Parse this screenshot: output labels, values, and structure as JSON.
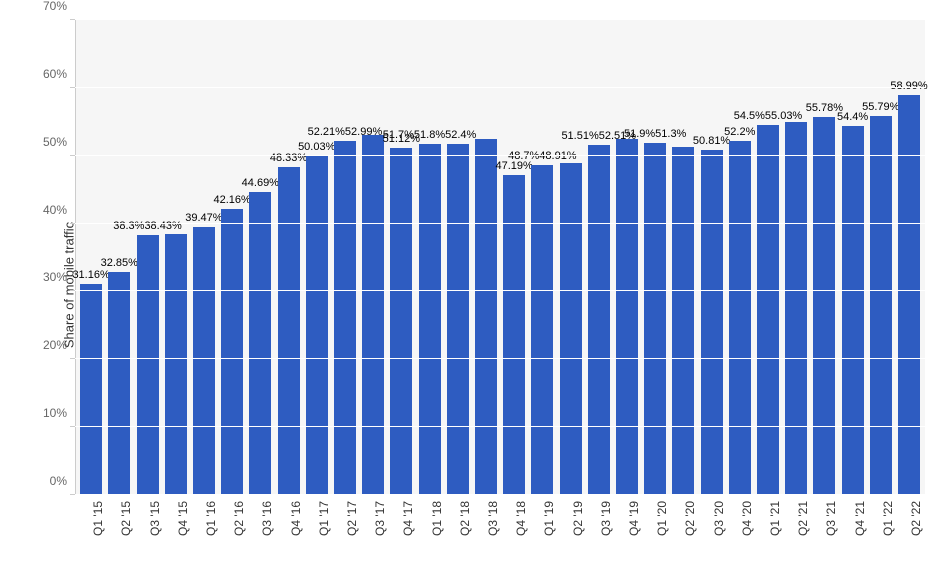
{
  "chart": {
    "type": "bar",
    "y_axis_label": "Share of mobile traffic",
    "ylim_min": 0,
    "ylim_max": 70,
    "ytick_step": 10,
    "y_tick_suffix": "%",
    "background_color": "#f6f6f6",
    "grid_color": "#ffffff",
    "axis_color": "#cccccc",
    "bar_color": "#2e5cc1",
    "bar_width_ratio": 0.78,
    "label_fontsize": 11,
    "axis_label_fontsize": 13,
    "tick_fontsize": 12,
    "categories": [
      "Q1 '15",
      "Q2 '15",
      "Q3 '15",
      "Q4 '15",
      "Q1 '16",
      "Q2 '16",
      "Q3 '16",
      "Q4 '16",
      "Q1 '17",
      "Q2 '17",
      "Q3 '17",
      "Q4 '17",
      "Q1 '18",
      "Q2 '18",
      "Q3 '18",
      "Q4 '18",
      "Q1 '19",
      "Q2 '19",
      "Q3 '19",
      "Q4 '19",
      "Q1 '20",
      "Q2 '20",
      "Q3 '20",
      "Q4 '20",
      "Q1 '21",
      "Q2 '21",
      "Q3 '21",
      "Q4 '21",
      "Q1 '22",
      "Q2 '22"
    ],
    "values": [
      31.16,
      32.85,
      38.3,
      38.43,
      39.47,
      42.16,
      44.69,
      48.33,
      50.03,
      52.21,
      52.99,
      51.12,
      51.7,
      51.8,
      52.4,
      47.19,
      48.7,
      48.91,
      51.51,
      52.51,
      51.9,
      51.3,
      50.81,
      52.2,
      54.5,
      55.03,
      55.78,
      54.4,
      55.79,
      58.99
    ],
    "value_labels": [
      "31.16%",
      "32.85%",
      "38.3%38.43%",
      "",
      "39.47%",
      "42.16%",
      "44.69%",
      "48.33%",
      "50.03%",
      "52.21%52.99%",
      "",
      "51.12%",
      "51.7%51.8%52.4%",
      "",
      "",
      "47.19%",
      "48.7%48.91%",
      "",
      "51.51%52.51%",
      "",
      "51.9%51.3%",
      "",
      "50.81%",
      "52.2%",
      "54.5%55.03%",
      "",
      "55.78%",
      "54.4%",
      "55.79%",
      "58.99%"
    ],
    "label_offsets_pct": [
      -50,
      -50,
      -50,
      -50,
      -50,
      -50,
      -50,
      -50,
      -50,
      -50,
      -50,
      -50,
      -50,
      -50,
      -50,
      -50,
      -50,
      -50,
      -50,
      -50,
      -50,
      -50,
      -50,
      -50,
      -50,
      -50,
      -50,
      -50,
      -50,
      -50
    ]
  }
}
